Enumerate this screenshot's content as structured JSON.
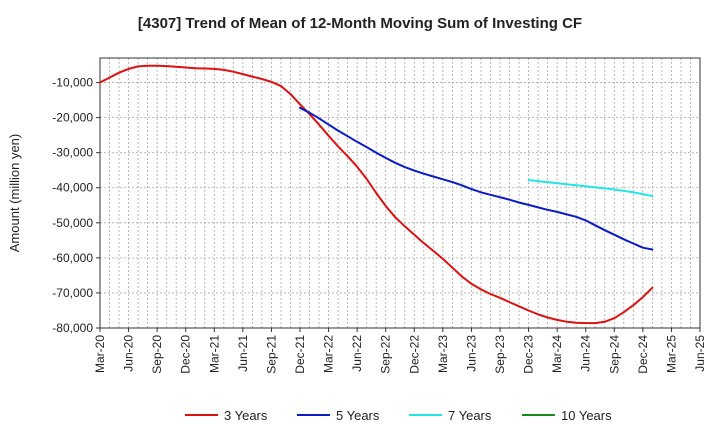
{
  "chart_data": {
    "type": "line",
    "title": "[4307]  Trend of Mean of 12-Month Moving Sum of Investing CF",
    "xlabel": "",
    "ylabel": "Amount (million yen)",
    "ylim": [
      -80000,
      -3000
    ],
    "y_ticks": [
      -10000,
      -20000,
      -30000,
      -40000,
      -50000,
      -60000,
      -70000,
      -80000
    ],
    "y_tick_labels": [
      "-10,000",
      "-20,000",
      "-30,000",
      "-40,000",
      "-50,000",
      "-60,000",
      "-70,000",
      "-80,000"
    ],
    "x_tick_labels": [
      "Mar-20",
      "Jun-20",
      "Sep-20",
      "Dec-20",
      "Mar-21",
      "Jun-21",
      "Sep-21",
      "Dec-21",
      "Mar-22",
      "Jun-22",
      "Sep-22",
      "Dec-22",
      "Mar-23",
      "Jun-23",
      "Sep-23",
      "Dec-23",
      "Mar-24",
      "Jun-24",
      "Sep-24",
      "Dec-24",
      "Mar-25",
      "Jun-25"
    ],
    "x_range_months": [
      0,
      63
    ],
    "grid": true,
    "legend_position": "bottom",
    "series": [
      {
        "name": "3 Years",
        "color": "#dd1111",
        "points": [
          [
            0,
            -10000
          ],
          [
            1,
            -8600
          ],
          [
            2,
            -7200
          ],
          [
            3,
            -6100
          ],
          [
            4,
            -5400
          ],
          [
            5,
            -5200
          ],
          [
            6,
            -5200
          ],
          [
            7,
            -5300
          ],
          [
            8,
            -5500
          ],
          [
            9,
            -5700
          ],
          [
            10,
            -5900
          ],
          [
            11,
            -6000
          ],
          [
            12,
            -6100
          ],
          [
            13,
            -6400
          ],
          [
            14,
            -6900
          ],
          [
            15,
            -7600
          ],
          [
            16,
            -8300
          ],
          [
            17,
            -9000
          ],
          [
            18,
            -9800
          ],
          [
            19,
            -11000
          ],
          [
            20,
            -13300
          ],
          [
            21,
            -16200
          ],
          [
            22,
            -19000
          ],
          [
            23,
            -22000
          ],
          [
            24,
            -25200
          ],
          [
            25,
            -28200
          ],
          [
            26,
            -31000
          ],
          [
            27,
            -34000
          ],
          [
            28,
            -37500
          ],
          [
            29,
            -41500
          ],
          [
            30,
            -45200
          ],
          [
            31,
            -48400
          ],
          [
            32,
            -51000
          ],
          [
            33,
            -53400
          ],
          [
            34,
            -55800
          ],
          [
            35,
            -58000
          ],
          [
            36,
            -60300
          ],
          [
            37,
            -62800
          ],
          [
            38,
            -65300
          ],
          [
            39,
            -67400
          ],
          [
            40,
            -69000
          ],
          [
            41,
            -70300
          ],
          [
            42,
            -71400
          ],
          [
            43,
            -72600
          ],
          [
            44,
            -73800
          ],
          [
            45,
            -75000
          ],
          [
            46,
            -76100
          ],
          [
            47,
            -77000
          ],
          [
            48,
            -77700
          ],
          [
            49,
            -78200
          ],
          [
            50,
            -78500
          ],
          [
            51,
            -78600
          ],
          [
            52,
            -78600
          ],
          [
            53,
            -78200
          ],
          [
            54,
            -77200
          ],
          [
            55,
            -75500
          ],
          [
            56,
            -73500
          ],
          [
            57,
            -71200
          ],
          [
            58,
            -68500
          ]
        ]
      },
      {
        "name": "5 Years",
        "color": "#0a1cc4",
        "points": [
          [
            21,
            -17200
          ],
          [
            22,
            -18600
          ],
          [
            23,
            -20200
          ],
          [
            24,
            -22000
          ],
          [
            25,
            -23700
          ],
          [
            26,
            -25300
          ],
          [
            27,
            -26900
          ],
          [
            28,
            -28400
          ],
          [
            29,
            -30000
          ],
          [
            30,
            -31500
          ],
          [
            31,
            -32900
          ],
          [
            32,
            -34100
          ],
          [
            33,
            -35100
          ],
          [
            34,
            -36000
          ],
          [
            35,
            -36800
          ],
          [
            36,
            -37600
          ],
          [
            37,
            -38400
          ],
          [
            38,
            -39300
          ],
          [
            39,
            -40400
          ],
          [
            40,
            -41300
          ],
          [
            41,
            -42000
          ],
          [
            42,
            -42700
          ],
          [
            43,
            -43400
          ],
          [
            44,
            -44200
          ],
          [
            45,
            -44900
          ],
          [
            46,
            -45600
          ],
          [
            47,
            -46300
          ],
          [
            48,
            -46900
          ],
          [
            49,
            -47600
          ],
          [
            50,
            -48300
          ],
          [
            51,
            -49300
          ],
          [
            52,
            -50700
          ],
          [
            53,
            -52100
          ],
          [
            54,
            -53400
          ],
          [
            55,
            -54700
          ],
          [
            56,
            -55900
          ],
          [
            57,
            -57100
          ],
          [
            58,
            -57600
          ]
        ]
      },
      {
        "name": "7 Years",
        "color": "#22e6e6",
        "points": [
          [
            45,
            -37800
          ],
          [
            46,
            -38100
          ],
          [
            47,
            -38400
          ],
          [
            48,
            -38700
          ],
          [
            49,
            -39000
          ],
          [
            50,
            -39300
          ],
          [
            51,
            -39600
          ],
          [
            52,
            -39900
          ],
          [
            53,
            -40200
          ],
          [
            54,
            -40500
          ],
          [
            55,
            -40900
          ],
          [
            56,
            -41300
          ],
          [
            57,
            -41800
          ],
          [
            58,
            -42400
          ]
        ]
      },
      {
        "name": "10 Years",
        "color": "#1a8a1a",
        "points": []
      }
    ]
  }
}
